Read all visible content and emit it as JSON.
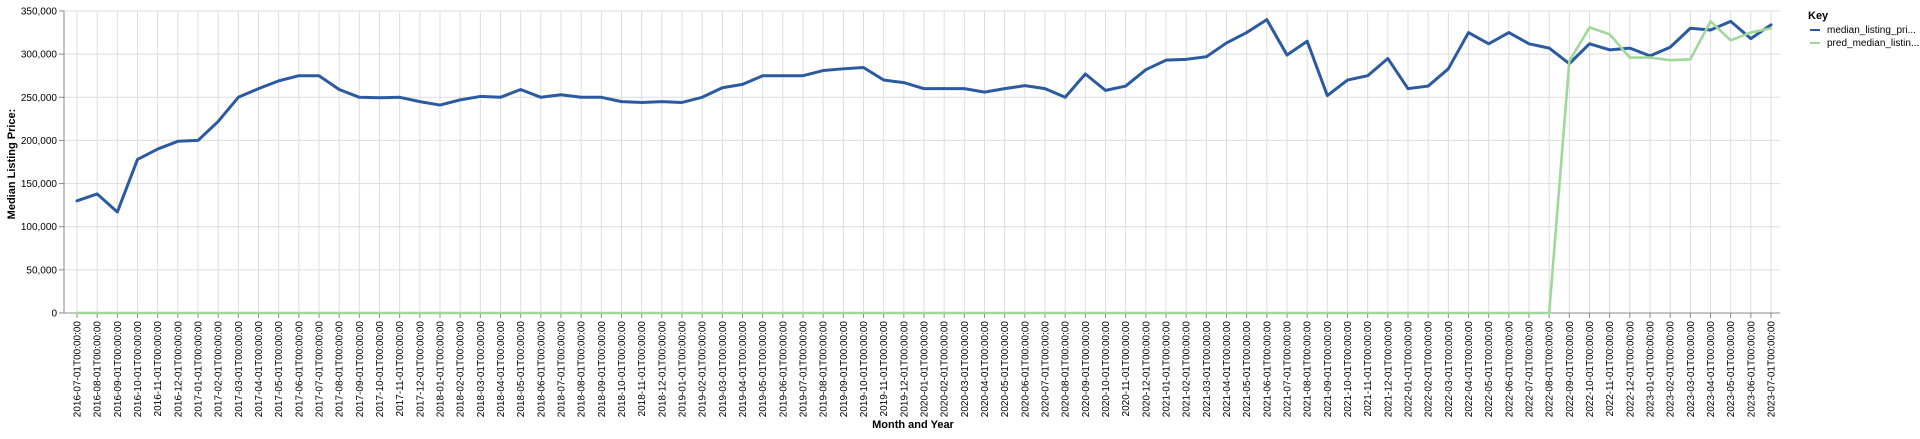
{
  "chart_data": {
    "type": "line",
    "xlabel": "Month and Year",
    "ylabel": "Median Listing Price:",
    "ylim": [
      0,
      350000
    ],
    "yticks": [
      0,
      50000,
      100000,
      150000,
      200000,
      250000,
      300000,
      350000
    ],
    "grid": true,
    "legend": {
      "title": "Key",
      "placement": "right",
      "entries": [
        "median_listing_pri...",
        "pred_median_listin..."
      ]
    },
    "x": [
      "2016-07-01T00:00:00",
      "2016-08-01T00:00:00",
      "2016-09-01T00:00:00",
      "2016-10-01T00:00:00",
      "2016-11-01T00:00:00",
      "2016-12-01T00:00:00",
      "2017-01-01T00:00:00",
      "2017-02-01T00:00:00",
      "2017-03-01T00:00:00",
      "2017-04-01T00:00:00",
      "2017-05-01T00:00:00",
      "2017-06-01T00:00:00",
      "2017-07-01T00:00:00",
      "2017-08-01T00:00:00",
      "2017-09-01T00:00:00",
      "2017-10-01T00:00:00",
      "2017-11-01T00:00:00",
      "2017-12-01T00:00:00",
      "2018-01-01T00:00:00",
      "2018-02-01T00:00:00",
      "2018-03-01T00:00:00",
      "2018-04-01T00:00:00",
      "2018-05-01T00:00:00",
      "2018-06-01T00:00:00",
      "2018-07-01T00:00:00",
      "2018-08-01T00:00:00",
      "2018-09-01T00:00:00",
      "2018-10-01T00:00:00",
      "2018-11-01T00:00:00",
      "2018-12-01T00:00:00",
      "2019-01-01T00:00:00",
      "2019-02-01T00:00:00",
      "2019-03-01T00:00:00",
      "2019-04-01T00:00:00",
      "2019-05-01T00:00:00",
      "2019-06-01T00:00:00",
      "2019-07-01T00:00:00",
      "2019-08-01T00:00:00",
      "2019-09-01T00:00:00",
      "2019-10-01T00:00:00",
      "2019-11-01T00:00:00",
      "2019-12-01T00:00:00",
      "2020-01-01T00:00:00",
      "2020-02-01T00:00:00",
      "2020-03-01T00:00:00",
      "2020-04-01T00:00:00",
      "2020-05-01T00:00:00",
      "2020-06-01T00:00:00",
      "2020-07-01T00:00:00",
      "2020-08-01T00:00:00",
      "2020-09-01T00:00:00",
      "2020-10-01T00:00:00",
      "2020-11-01T00:00:00",
      "2020-12-01T00:00:00",
      "2021-01-01T00:00:00",
      "2021-02-01T00:00:00",
      "2021-03-01T00:00:00",
      "2021-04-01T00:00:00",
      "2021-05-01T00:00:00",
      "2021-06-01T00:00:00",
      "2021-07-01T00:00:00",
      "2021-08-01T00:00:00",
      "2021-09-01T00:00:00",
      "2021-10-01T00:00:00",
      "2021-11-01T00:00:00",
      "2021-12-01T00:00:00",
      "2022-01-01T00:00:00",
      "2022-02-01T00:00:00",
      "2022-03-01T00:00:00",
      "2022-04-01T00:00:00",
      "2022-05-01T00:00:00",
      "2022-06-01T00:00:00",
      "2022-07-01T00:00:00",
      "2022-08-01T00:00:00",
      "2022-09-01T00:00:00",
      "2022-10-01T00:00:00",
      "2022-11-01T00:00:00",
      "2022-12-01T00:00:00",
      "2023-01-01T00:00:00",
      "2023-02-01T00:00:00",
      "2023-03-01T00:00:00",
      "2023-04-01T00:00:00",
      "2023-05-01T00:00:00",
      "2023-06-01T00:00:00",
      "2023-07-01T00:00:00"
    ],
    "series": [
      {
        "name": "median_listing_pri...",
        "color": "#2c5aa0",
        "values": [
          130000,
          138000,
          117000,
          178000,
          190000,
          199000,
          200000,
          222000,
          250000,
          260000,
          269000,
          275000,
          275000,
          259000,
          250000,
          249500,
          250000,
          245000,
          241000,
          247000,
          251000,
          250000,
          259000,
          250000,
          253000,
          250000,
          250000,
          245000,
          244000,
          245000,
          244000,
          250000,
          261000,
          265000,
          275000,
          275000,
          275000,
          281000,
          283000,
          284500,
          270000,
          267000,
          260000,
          260000,
          260000,
          256000,
          260000,
          263500,
          260000,
          250000,
          277000,
          258000,
          263000,
          282000,
          293000,
          294000,
          297000,
          313000,
          325000,
          340000,
          299000,
          315000,
          252000,
          270000,
          275000,
          295000,
          260000,
          263000,
          283000,
          325000,
          312000,
          325000,
          312000,
          307000,
          289000,
          312000,
          305000,
          307000,
          298000,
          308000,
          330000,
          328000,
          338000,
          318000,
          334000
        ]
      },
      {
        "name": "pred_median_listin...",
        "color": "#9fd89a",
        "values": [
          0,
          0,
          0,
          0,
          0,
          0,
          0,
          0,
          0,
          0,
          0,
          0,
          0,
          0,
          0,
          0,
          0,
          0,
          0,
          0,
          0,
          0,
          0,
          0,
          0,
          0,
          0,
          0,
          0,
          0,
          0,
          0,
          0,
          0,
          0,
          0,
          0,
          0,
          0,
          0,
          0,
          0,
          0,
          0,
          0,
          0,
          0,
          0,
          0,
          0,
          0,
          0,
          0,
          0,
          0,
          0,
          0,
          0,
          0,
          0,
          0,
          0,
          0,
          0,
          0,
          0,
          0,
          0,
          0,
          0,
          0,
          0,
          0,
          0,
          292000,
          331000,
          323000,
          296000,
          296000,
          293000,
          294000,
          338000,
          316000,
          325000,
          330000
        ]
      }
    ]
  }
}
